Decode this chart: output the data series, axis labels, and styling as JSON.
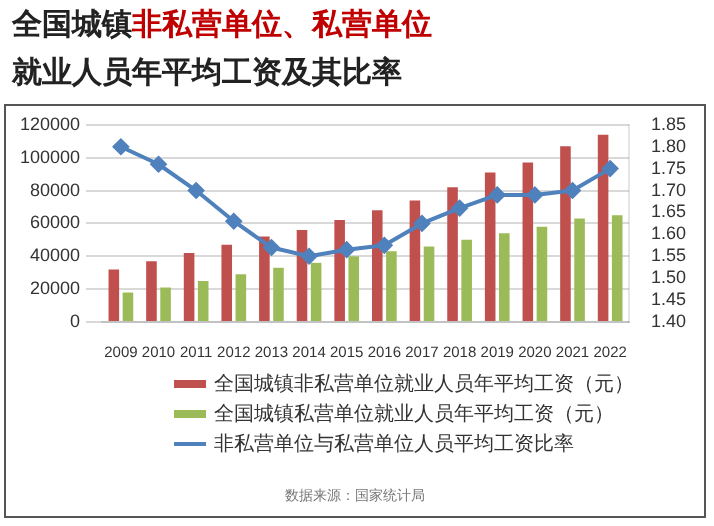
{
  "chart_data": {
    "type": "bar",
    "title": "全国城镇非私营单位、私营单位",
    "subtitle": "就业人员年平均工资及其比率",
    "categories": [
      "2009",
      "2010",
      "2011",
      "2012",
      "2013",
      "2014",
      "2015",
      "2016",
      "2017",
      "2018",
      "2019",
      "2020",
      "2021",
      "2022"
    ],
    "series": [
      {
        "name": "全国城镇非私营单位就业人员年平均工资（元）",
        "color": "#c0504d",
        "values": [
          32000,
          37000,
          42000,
          47000,
          52000,
          56000,
          62000,
          68000,
          74000,
          82000,
          91000,
          97000,
          107000,
          114000
        ]
      },
      {
        "name": "全国城镇私营单位就业人员年平均工资（元）",
        "color": "#9bbb59",
        "values": [
          18000,
          21000,
          25000,
          29000,
          33000,
          36000,
          40000,
          43000,
          46000,
          50000,
          54000,
          58000,
          63000,
          65000
        ]
      },
      {
        "name": "非私营单位与私营单位人员平均工资比率",
        "type": "line",
        "axis": "y2",
        "color": "#4f81bd",
        "marker": "diamond",
        "values": [
          1.8,
          1.76,
          1.7,
          1.63,
          1.57,
          1.55,
          1.565,
          1.575,
          1.625,
          1.66,
          1.69,
          1.69,
          1.7,
          1.75
        ]
      }
    ],
    "ylim": [
      0,
      120000
    ],
    "yticks": [
      0,
      20000,
      40000,
      60000,
      80000,
      100000,
      120000
    ],
    "y2lim": [
      1.4,
      1.85
    ],
    "y2ticks": [
      {
        "value": 1.4,
        "label": "1.40"
      },
      1.45,
      {
        "value": 1.5,
        "label": "1.50"
      },
      1.55,
      {
        "value": 1.6,
        "label": "1.60"
      },
      1.65,
      {
        "value": 1.7,
        "label": "1.70"
      },
      1.75,
      {
        "value": 1.8,
        "label": "1.80"
      },
      1.85
    ],
    "grid": "y",
    "legend": "bottom",
    "annotations": [
      "数据来源：国家统计局"
    ]
  }
}
